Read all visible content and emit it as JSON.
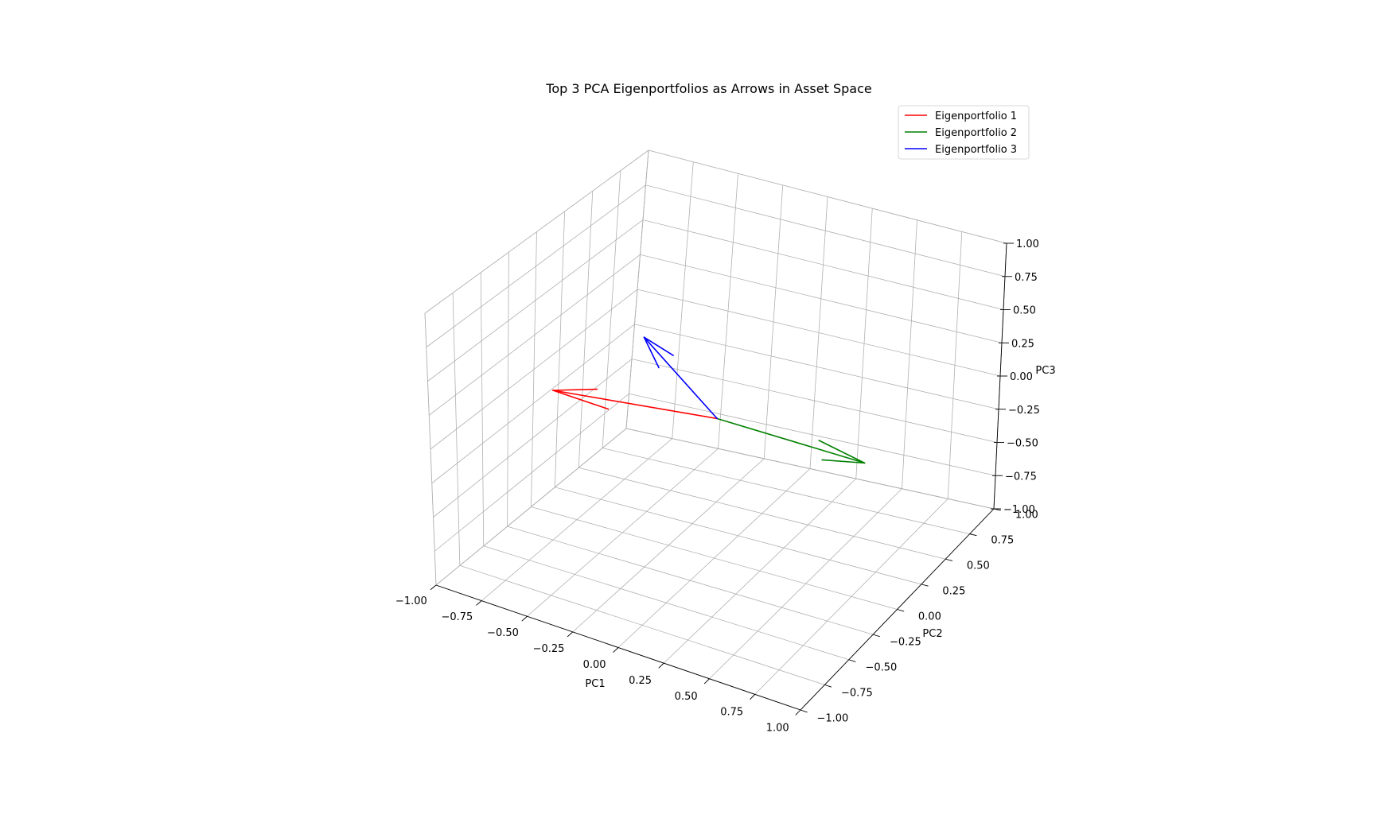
{
  "chart_data": {
    "type": "line",
    "title": "Top 3 PCA Eigenportfolios as Arrows in Asset Space",
    "xlabel": "PC1",
    "ylabel": "PC2",
    "zlabel": "PC3",
    "xlim": [
      -1,
      1
    ],
    "ylim": [
      -1,
      1
    ],
    "zlim": [
      -1,
      1
    ],
    "ticks": [
      -1,
      -0.75,
      -0.5,
      -0.25,
      0,
      0.25,
      0.5,
      0.75,
      1
    ],
    "tick_labels": [
      "−1.00",
      "−0.75",
      "−0.50",
      "−0.25",
      "0.00",
      "0.25",
      "0.50",
      "0.75",
      "1.00"
    ],
    "grid": true,
    "legend_position": "top-right",
    "series": [
      {
        "name": "Eigenportfolio 1",
        "color": "#ff0000",
        "origin": [
          0,
          0,
          0
        ],
        "vector": [
          -0.58,
          -0.56,
          0.33
        ]
      },
      {
        "name": "Eigenportfolio 2",
        "color": "#008000",
        "origin": [
          0,
          0,
          0
        ],
        "vector": [
          0.6,
          0.39,
          -0.36
        ]
      },
      {
        "name": "Eigenportfolio 3",
        "color": "#0000ff",
        "origin": [
          0,
          0,
          0
        ],
        "vector": [
          -0.4,
          -0.01,
          0.45
        ]
      }
    ]
  }
}
